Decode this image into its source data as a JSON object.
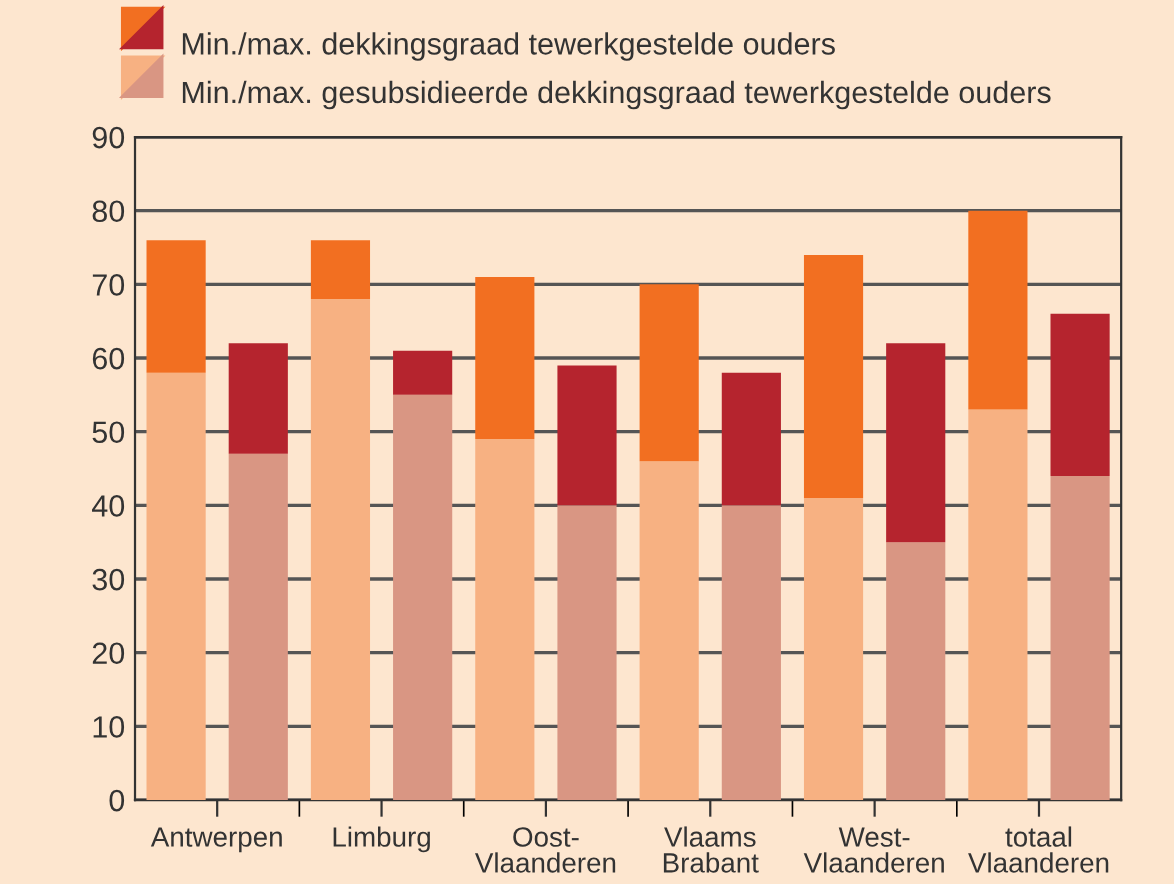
{
  "chart_data": {
    "type": "bar",
    "stacked": true,
    "categories": [
      "Antwerpen",
      null,
      "Limburg",
      null,
      "Oost-\nVlaanderen",
      null,
      "Vlaams\nBrabant",
      null,
      "West-\nVlaanderen",
      null,
      "totaal\nVlaanderen",
      null
    ],
    "series": [
      {
        "name": "Min./max. gesubsidieerde dekkingsgraad tewerkgestelde ouders",
        "colors": [
          "#f7b182",
          "#d99683",
          "#f7b182",
          "#d99683",
          "#f7b182",
          "#d99683",
          "#f7b182",
          "#d99683",
          "#f7b182",
          "#d99683",
          "#f7b182",
          "#d99683"
        ],
        "values": [
          58,
          47,
          68,
          55,
          49,
          40,
          46,
          40,
          41,
          35,
          53,
          44
        ]
      },
      {
        "name": "Min./max. dekkingsgraad tewerkgestelde ouders",
        "colors": [
          "#f26f21",
          "#b5242e",
          "#f26f21",
          "#b5242e",
          "#f26f21",
          "#b5242e",
          "#f26f21",
          "#b5242e",
          "#f26f21",
          "#b5242e",
          "#f26f21",
          "#b5242e"
        ],
        "values": [
          18,
          15,
          8,
          6,
          22,
          19,
          24,
          18,
          33,
          27,
          27,
          22
        ]
      }
    ],
    "ylim": [
      0,
      90
    ],
    "yticks": [
      0,
      10,
      20,
      30,
      40,
      50,
      60,
      70,
      80,
      90
    ],
    "grid": "y",
    "legend": "top"
  }
}
